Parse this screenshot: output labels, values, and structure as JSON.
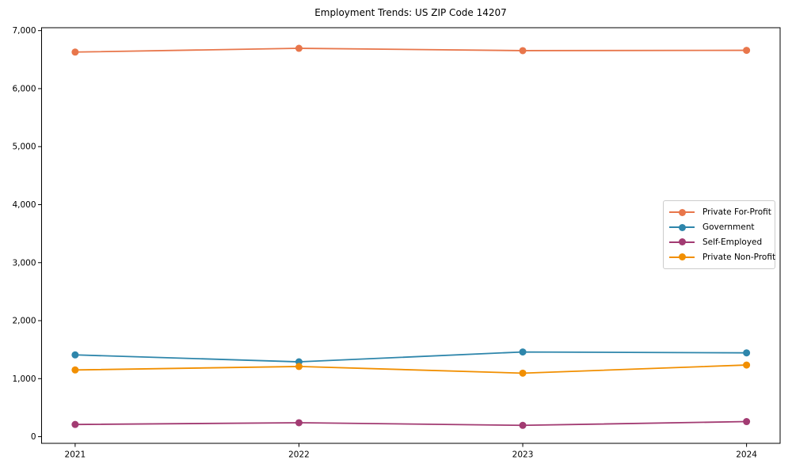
{
  "chart_data": {
    "type": "line",
    "title": "Employment Trends: US ZIP Code 14207",
    "xlabel": "",
    "ylabel": "",
    "categories": [
      "2021",
      "2022",
      "2023",
      "2024"
    ],
    "series": [
      {
        "name": "Private For-Profit",
        "color": "#E8764B",
        "values": [
          6630,
          6695,
          6655,
          6660
        ]
      },
      {
        "name": "Government",
        "color": "#2E86AB",
        "values": [
          1410,
          1290,
          1460,
          1445
        ]
      },
      {
        "name": "Self-Employed",
        "color": "#A23B72",
        "values": [
          210,
          240,
          195,
          260
        ]
      },
      {
        "name": "Private Non-Profit",
        "color": "#F18F01",
        "values": [
          1150,
          1210,
          1095,
          1235
        ]
      }
    ],
    "ylim": [
      0,
      7000
    ],
    "ytick_values": [
      0,
      1000,
      2000,
      3000,
      4000,
      5000,
      6000,
      7000
    ],
    "ytick_labels": [
      "0",
      "1,000",
      "2,000",
      "3,000",
      "4,000",
      "5,000",
      "6,000",
      "7,000"
    ],
    "grid": false,
    "legend_position": "center right",
    "axis_color": "#000000",
    "background_color": "#ffffff"
  }
}
